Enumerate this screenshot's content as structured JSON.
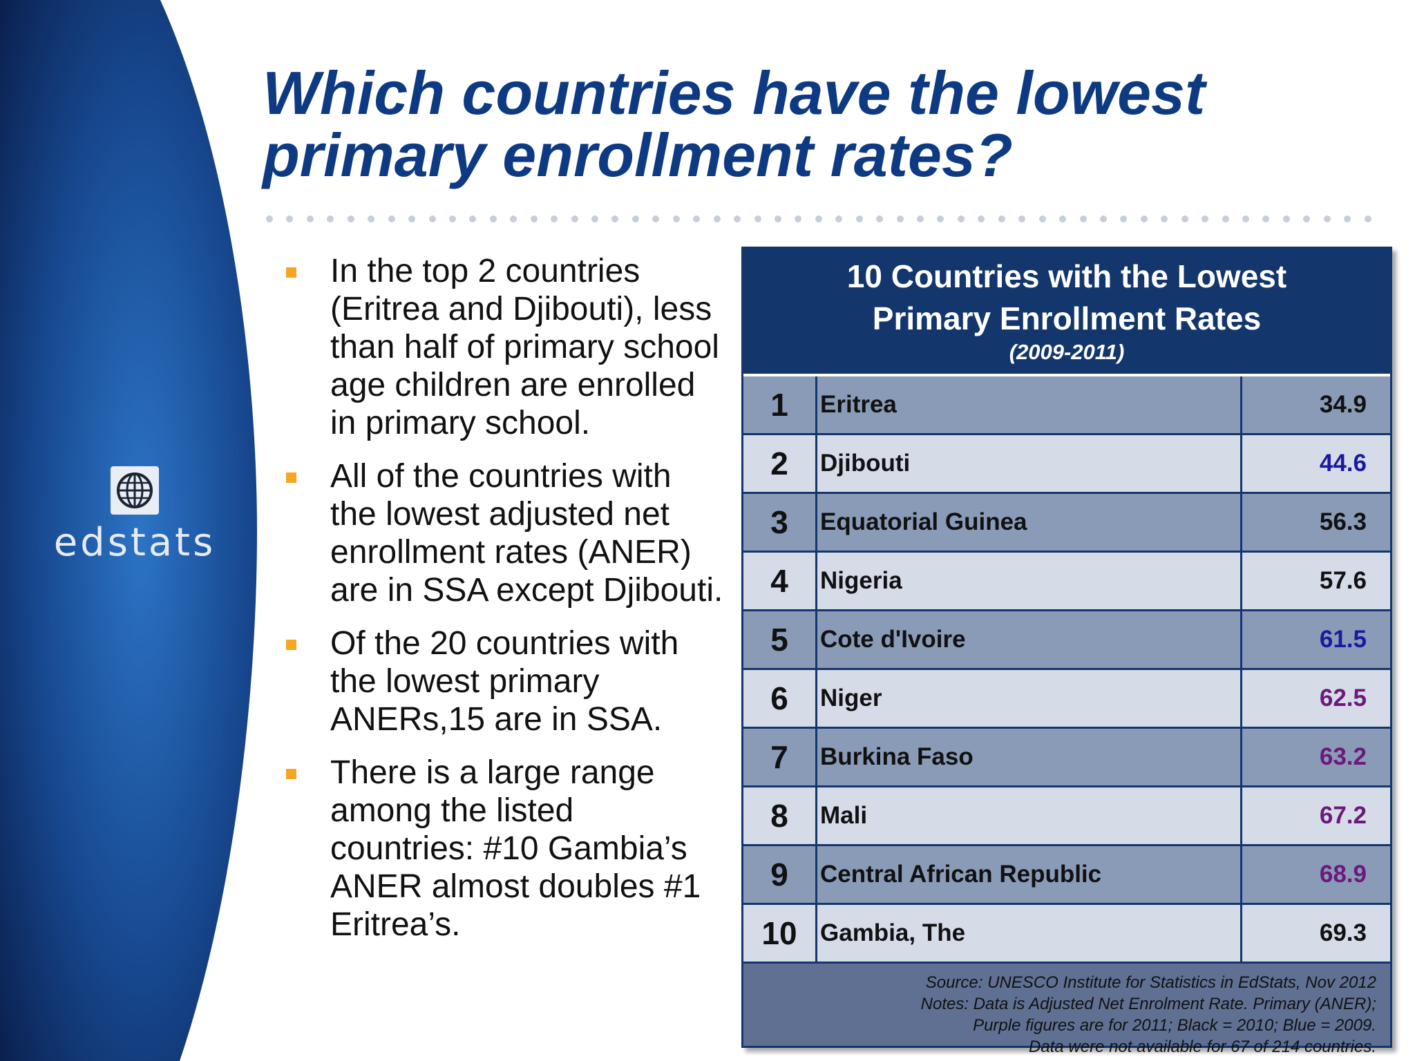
{
  "title": {
    "line1": "Which countries have the lowest",
    "line2": "primary enrollment rates?"
  },
  "logo": {
    "text": "edstats",
    "icon": "globe-icon"
  },
  "bullets": [
    "In the top 2 countries (Eritrea and Djibouti), less than half of primary school age children are enrolled in primary school.",
    "All of the countries with the lowest adjusted net enrollment rates (ANER) are in SSA except Djibouti.",
    "Of the 20 countries with the lowest primary ANERs,15 are in SSA.",
    "There is a large range among the listed countries: #10 Gambia’s ANER almost doubles #1 Eritrea’s."
  ],
  "table": {
    "title_line1": "10 Countries with the Lowest",
    "title_line2": "Primary Enrollment Rates",
    "years": "(2009-2011)",
    "rows": [
      {
        "rank": "1",
        "country": "Eritrea",
        "value": "34.9",
        "color": "#111111"
      },
      {
        "rank": "2",
        "country": "Djibouti",
        "value": "44.6",
        "color": "#1a1a9e"
      },
      {
        "rank": "3",
        "country": "Equatorial Guinea",
        "value": "56.3",
        "color": "#111111"
      },
      {
        "rank": "4",
        "country": "Nigeria",
        "value": "57.6",
        "color": "#111111"
      },
      {
        "rank": "5",
        "country": "Cote d'Ivoire",
        "value": "61.5",
        "color": "#1a1a9e"
      },
      {
        "rank": "6",
        "country": "Niger",
        "value": "62.5",
        "color": "#6b1a7a"
      },
      {
        "rank": "7",
        "country": "Burkina Faso",
        "value": "63.2",
        "color": "#6b1a7a"
      },
      {
        "rank": "8",
        "country": "Mali",
        "value": "67.2",
        "color": "#6b1a7a"
      },
      {
        "rank": "9",
        "country": "Central African Republic",
        "value": "68.9",
        "color": "#6b1a7a"
      },
      {
        "rank": "10",
        "country": "Gambia, The",
        "value": "69.3",
        "color": "#111111"
      }
    ],
    "source_lines": [
      "Source:  UNESCO Institute for Statistics in EdStats, Nov 2012",
      "Notes: Data is Adjusted Net Enrolment Rate. Primary (ANER);",
      "Purple figures are for 2011; Black = 2010; Blue = 2009.",
      "Data were not available for 67 of 214 countries."
    ]
  },
  "colors": {
    "title": "#0d3a82",
    "panel_dark": "#0a2050",
    "panel_light": "#2a6fc0",
    "bullet_mark": "#f5a623",
    "table_header": "#13366d"
  }
}
